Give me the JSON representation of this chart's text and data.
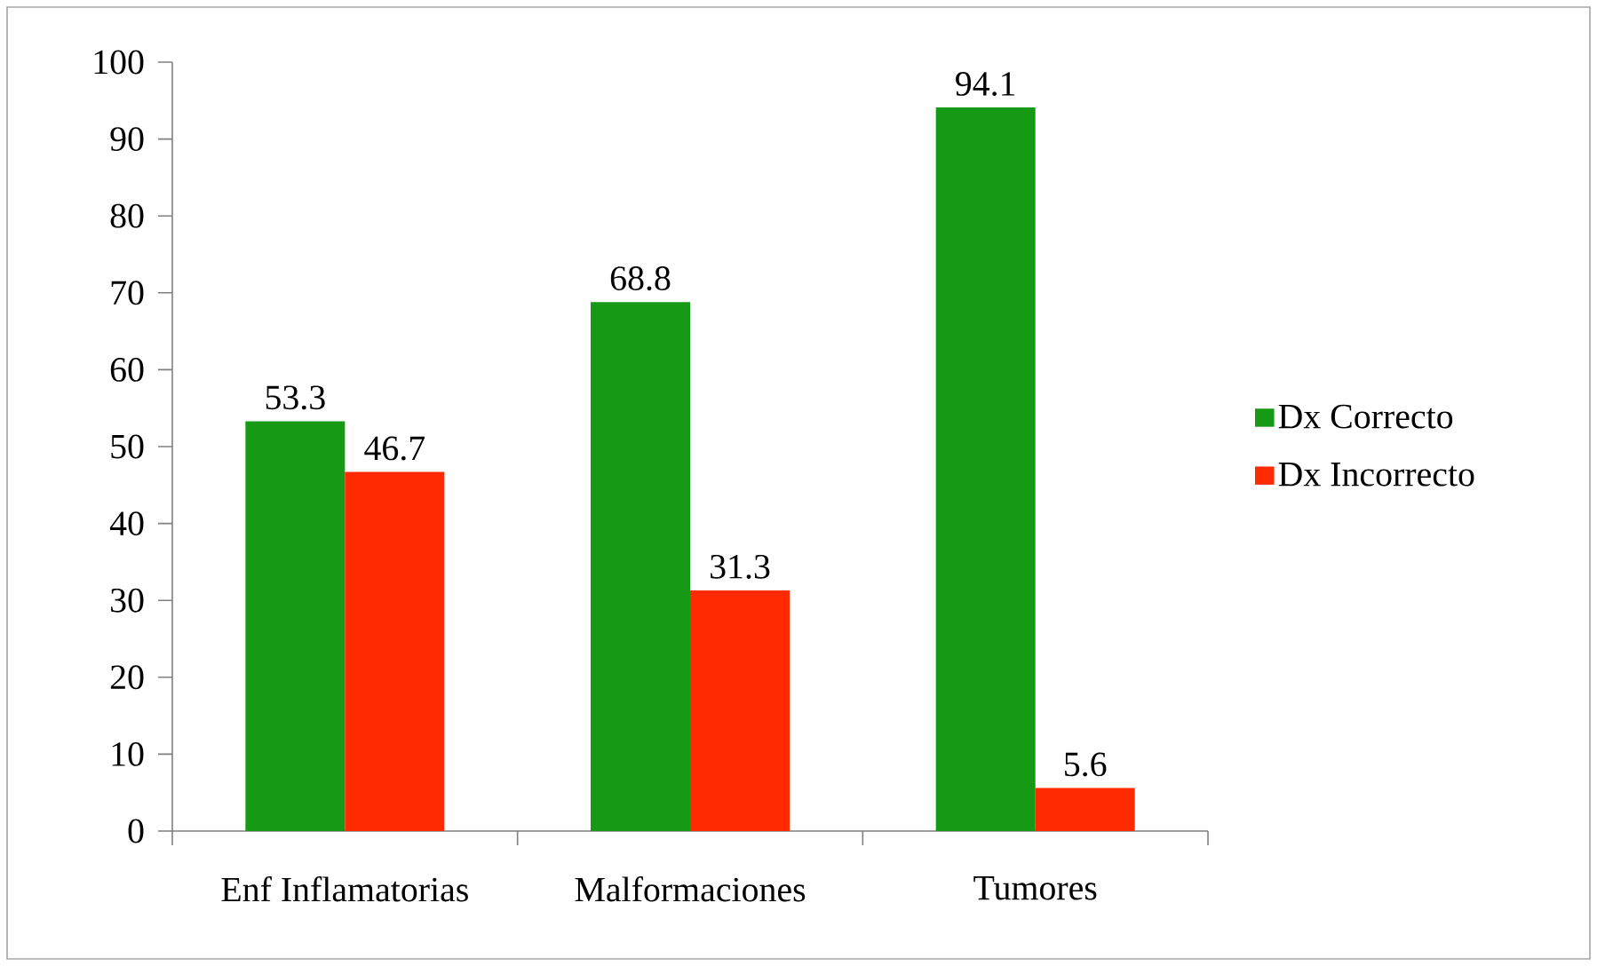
{
  "chart_data": {
    "type": "bar",
    "categories": [
      "Enf Inflamatorias",
      "Malformaciones",
      "Tumores"
    ],
    "series": [
      {
        "name": "Dx Correcto",
        "color": "#169a16",
        "values": [
          53.3,
          68.8,
          94.1
        ]
      },
      {
        "name": "Dx Incorrecto",
        "color": "#ff2a00",
        "values": [
          46.7,
          31.3,
          5.6
        ]
      }
    ],
    "ylim": [
      0,
      100
    ],
    "yticks": [
      0,
      10,
      20,
      30,
      40,
      50,
      60,
      70,
      80,
      90,
      100
    ],
    "data_labels": true,
    "grid": false,
    "legend": "right"
  }
}
